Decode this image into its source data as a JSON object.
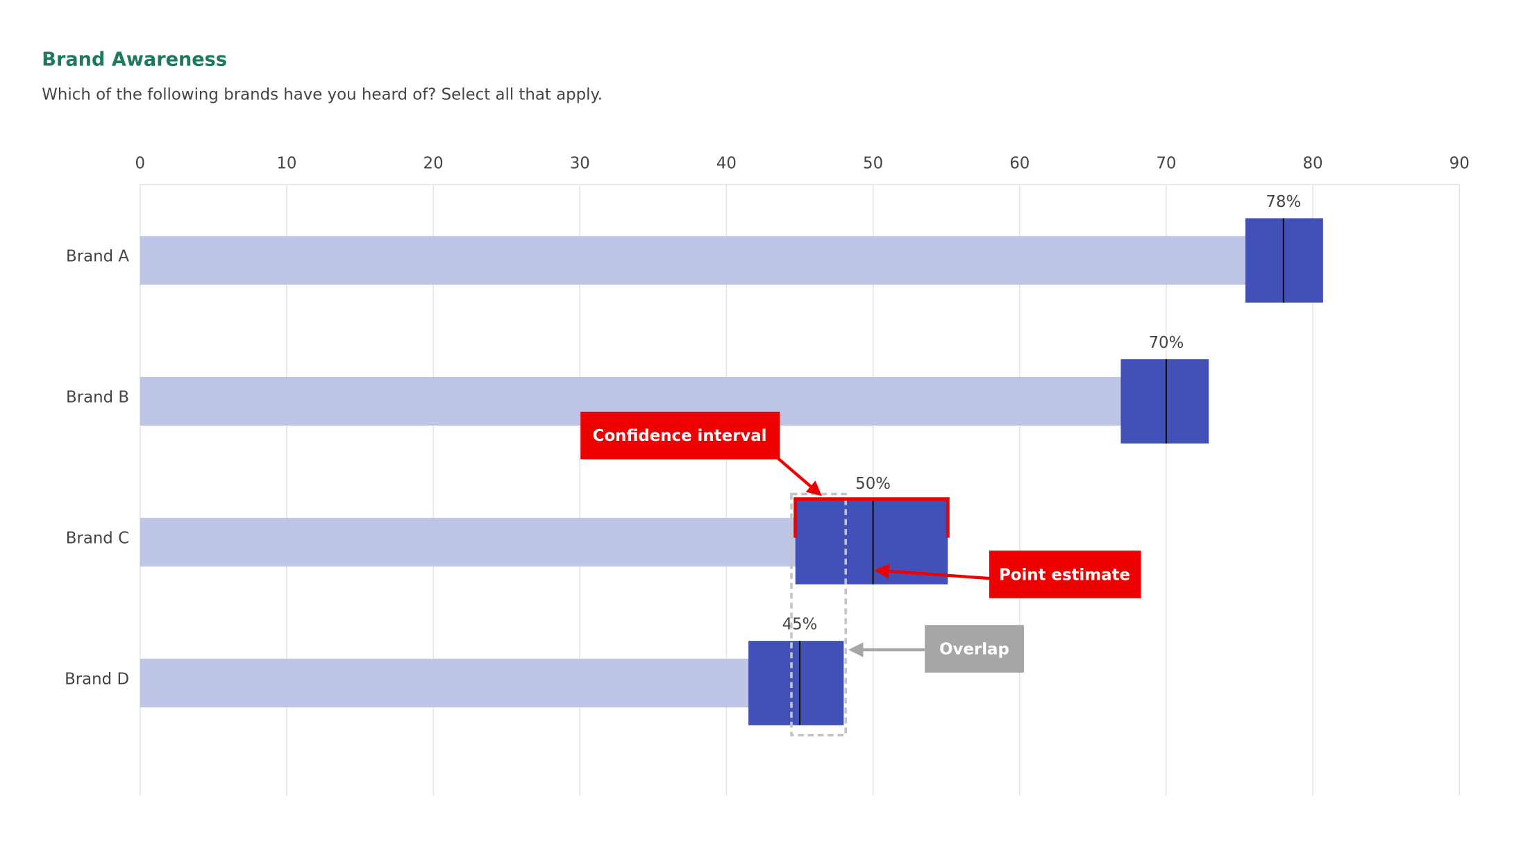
{
  "chart_data": {
    "type": "ci_bar",
    "title": "Brand Awareness",
    "subtitle": "Which of the following brands have you heard of? Select all that apply.",
    "categories": [
      "Brand A",
      "Brand B",
      "Brand C",
      "Brand D"
    ],
    "series": [
      {
        "values": [
          78,
          70,
          50,
          45
        ],
        "value_labels": [
          "78%",
          "70%",
          "50%",
          "45%"
        ],
        "ci_low": [
          75.4,
          66.9,
          44.7,
          41.5
        ],
        "ci_high": [
          80.7,
          72.9,
          55.1,
          48.0
        ],
        "color": "#bcc2e6",
        "ci_color": "#4251b8"
      }
    ],
    "xlim": [
      0,
      90
    ],
    "xticks": [
      0,
      10,
      20,
      30,
      40,
      50,
      60,
      70,
      80,
      90
    ],
    "grid": true,
    "annotations": [
      {
        "text": "Confidence interval",
        "color": "#ee0000"
      },
      {
        "text": "Point estimate",
        "color": "#ee0000"
      },
      {
        "text": "Overlap",
        "color": "#a6a6a6"
      }
    ]
  }
}
